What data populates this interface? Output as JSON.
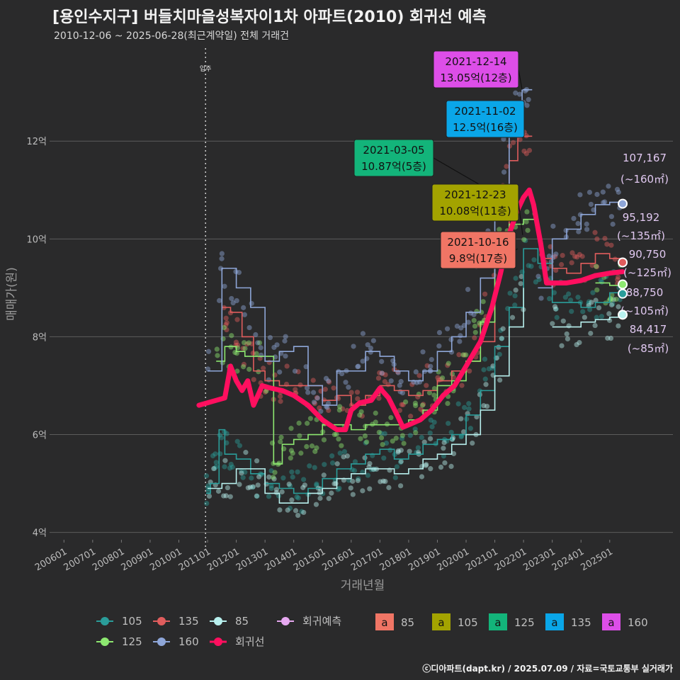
{
  "header": {
    "title": "[용인수지구] 버들치마을성복자이1차 아파트(2010) 회귀선 예측",
    "subtitle": "2010-12-06 ~ 2025-06-28(최근계약일) 전체 거래건",
    "credit": "ⓒ디아파트(dapt.kr) / 2025.07.09 / 자료=국토교통부 실거래가"
  },
  "chart_data": {
    "type": "line",
    "xlabel": "거래년월",
    "ylabel": "매매가(원)",
    "x_unit": "year_decimal",
    "xlim": [
      2005.5,
      2027.2
    ],
    "ylim": [
      3.85,
      13.9
    ],
    "y_ticks": [
      {
        "v": 4,
        "label": "4억"
      },
      {
        "v": 6,
        "label": "6억"
      },
      {
        "v": 8,
        "label": "8억"
      },
      {
        "v": 10,
        "label": "10억"
      },
      {
        "v": 12,
        "label": "12억"
      }
    ],
    "x_ticks": [
      {
        "v": 2006,
        "label": "200601"
      },
      {
        "v": 2007,
        "label": "200701"
      },
      {
        "v": 2008,
        "label": "200801"
      },
      {
        "v": 2009,
        "label": "200901"
      },
      {
        "v": 2010,
        "label": "201001"
      },
      {
        "v": 2011,
        "label": "201101"
      },
      {
        "v": 2012,
        "label": "201201"
      },
      {
        "v": 2013,
        "label": "201301"
      },
      {
        "v": 2014,
        "label": "201401"
      },
      {
        "v": 2015,
        "label": "201501"
      },
      {
        "v": 2016,
        "label": "201601"
      },
      {
        "v": 2017,
        "label": "201701"
      },
      {
        "v": 2018,
        "label": "201801"
      },
      {
        "v": 2019,
        "label": "201901"
      },
      {
        "v": 2020,
        "label": "202001"
      },
      {
        "v": 2021,
        "label": "202101"
      },
      {
        "v": 2022,
        "label": "202201"
      },
      {
        "v": 2023,
        "label": "202301"
      },
      {
        "v": 2024,
        "label": "202401"
      },
      {
        "v": 2025,
        "label": "202501"
      }
    ],
    "move_in": {
      "x": 2010.93,
      "label": "입주"
    },
    "series": [
      {
        "name": "105",
        "color": "#2a9d9a",
        "points": [
          [
            2010.95,
            4.8
          ],
          [
            2011.1,
            5.0
          ],
          [
            2011.4,
            6.1
          ],
          [
            2011.6,
            5.6
          ],
          [
            2012.0,
            5.5
          ],
          [
            2012.5,
            5.2
          ],
          [
            2013.0,
            5.0
          ],
          [
            2013.5,
            4.9
          ],
          [
            2014.0,
            4.8
          ],
          [
            2014.5,
            4.9
          ],
          [
            2015.0,
            5.1
          ],
          [
            2015.5,
            5.3
          ],
          [
            2016.0,
            5.4
          ],
          [
            2016.5,
            5.6
          ],
          [
            2017.0,
            5.7
          ],
          [
            2017.5,
            5.5
          ],
          [
            2018.0,
            5.6
          ],
          [
            2018.5,
            5.8
          ],
          [
            2019.0,
            5.9
          ],
          [
            2019.5,
            6.0
          ],
          [
            2020.0,
            6.4
          ],
          [
            2020.5,
            6.9
          ],
          [
            2021.0,
            7.8
          ],
          [
            2021.5,
            8.6
          ],
          [
            2022.0,
            9.8
          ],
          [
            2022.5,
            9.5
          ],
          [
            2023.0,
            8.7
          ],
          [
            2023.5,
            8.7
          ],
          [
            2024.0,
            8.6
          ],
          [
            2024.5,
            8.7
          ],
          [
            2025.0,
            8.9
          ],
          [
            2025.4,
            8.9
          ]
        ]
      },
      {
        "name": "135",
        "color": "#e05d5d",
        "points": [
          [
            2011.5,
            8.6
          ],
          [
            2011.8,
            8.5
          ],
          [
            2012.2,
            8.0
          ],
          [
            2012.6,
            7.3
          ],
          [
            2013.0,
            7.1
          ],
          [
            2013.5,
            7.0
          ],
          [
            2014.0,
            7.0
          ],
          [
            2014.5,
            7.0
          ],
          [
            2015.0,
            6.7
          ],
          [
            2015.5,
            6.8
          ],
          [
            2016.0,
            6.6
          ],
          [
            2016.5,
            6.8
          ],
          [
            2017.0,
            7.0
          ],
          [
            2017.5,
            6.9
          ],
          [
            2018.0,
            6.8
          ],
          [
            2018.5,
            6.9
          ],
          [
            2019.0,
            7.1
          ],
          [
            2019.5,
            7.3
          ],
          [
            2020.0,
            7.5
          ],
          [
            2020.5,
            7.9
          ],
          [
            2021.0,
            9.8
          ],
          [
            2021.5,
            11.6
          ],
          [
            2021.8,
            12.5
          ],
          [
            2022.0,
            12.1
          ],
          [
            2022.3,
            12.1
          ]
        ]
      },
      {
        "name": "135",
        "color": "#e05d5d",
        "points": [
          [
            2022.6,
            9.6
          ],
          [
            2023.0,
            9.4
          ],
          [
            2023.5,
            9.3
          ],
          [
            2024.0,
            9.5
          ],
          [
            2024.5,
            9.7
          ],
          [
            2025.0,
            9.6
          ],
          [
            2025.4,
            9.5
          ]
        ]
      },
      {
        "name": "85",
        "color": "#b8f0ee",
        "points": [
          [
            2011.0,
            4.9
          ],
          [
            2011.5,
            5.0
          ],
          [
            2012.0,
            5.3
          ],
          [
            2012.5,
            5.3
          ],
          [
            2013.0,
            4.8
          ],
          [
            2013.5,
            4.6
          ],
          [
            2014.0,
            4.6
          ],
          [
            2014.5,
            4.8
          ],
          [
            2015.0,
            4.9
          ],
          [
            2015.5,
            5.1
          ],
          [
            2016.0,
            5.2
          ],
          [
            2016.5,
            5.3
          ],
          [
            2017.0,
            5.3
          ],
          [
            2017.5,
            5.2
          ],
          [
            2018.0,
            5.3
          ],
          [
            2018.5,
            5.5
          ],
          [
            2019.0,
            5.6
          ],
          [
            2019.5,
            5.8
          ],
          [
            2020.0,
            6.0
          ],
          [
            2020.5,
            6.5
          ],
          [
            2021.0,
            7.2
          ],
          [
            2021.5,
            8.2
          ],
          [
            2022.0,
            9.0
          ]
        ]
      },
      {
        "name": "85",
        "color": "#b8f0ee",
        "points": [
          [
            2023.0,
            8.2
          ],
          [
            2023.5,
            8.2
          ],
          [
            2024.0,
            8.3
          ],
          [
            2024.5,
            8.35
          ],
          [
            2025.0,
            8.4
          ],
          [
            2025.4,
            8.45
          ]
        ]
      },
      {
        "name": "125",
        "color": "#8de870",
        "points": [
          [
            2011.3,
            7.5
          ],
          [
            2011.6,
            7.8
          ],
          [
            2012.0,
            7.7
          ],
          [
            2012.3,
            7.6
          ],
          [
            2012.8,
            7.6
          ],
          [
            2013.3,
            5.4
          ],
          [
            2013.6,
            5.8
          ],
          [
            2014.0,
            5.9
          ],
          [
            2014.5,
            6.0
          ],
          [
            2015.0,
            6.2
          ],
          [
            2015.5,
            6.2
          ],
          [
            2016.0,
            6.1
          ],
          [
            2016.5,
            6.2
          ],
          [
            2017.0,
            6.2
          ],
          [
            2017.5,
            6.2
          ],
          [
            2018.0,
            6.3
          ],
          [
            2018.5,
            6.5
          ],
          [
            2019.0,
            7.0
          ],
          [
            2019.5,
            7.1
          ],
          [
            2020.0,
            7.5
          ],
          [
            2020.5,
            8.3
          ],
          [
            2021.0,
            9.8
          ],
          [
            2021.5,
            10.3
          ],
          [
            2022.0,
            10.4
          ],
          [
            2022.4,
            10.5
          ]
        ]
      },
      {
        "name": "125",
        "color": "#8de870",
        "points": [
          [
            2024.5,
            9.1
          ],
          [
            2025.0,
            9.05
          ],
          [
            2025.4,
            9.05
          ]
        ]
      },
      {
        "name": "160",
        "color": "#8ea6d8",
        "points": [
          [
            2011.0,
            7.3
          ],
          [
            2011.5,
            9.4
          ],
          [
            2012.0,
            9.0
          ],
          [
            2012.5,
            8.6
          ],
          [
            2013.0,
            7.5
          ],
          [
            2013.5,
            7.7
          ],
          [
            2014.0,
            7.8
          ],
          [
            2014.5,
            7.0
          ],
          [
            2015.0,
            6.6
          ],
          [
            2015.5,
            7.3
          ],
          [
            2016.0,
            7.3
          ],
          [
            2016.5,
            7.7
          ],
          [
            2017.0,
            7.6
          ],
          [
            2017.5,
            7.3
          ],
          [
            2018.0,
            7.1
          ],
          [
            2018.5,
            7.3
          ],
          [
            2019.0,
            7.7
          ],
          [
            2019.5,
            8.0
          ],
          [
            2020.0,
            8.5
          ],
          [
            2020.5,
            9.2
          ],
          [
            2021.0,
            10.5
          ],
          [
            2021.5,
            12.4
          ],
          [
            2021.95,
            13.05
          ],
          [
            2022.3,
            13.05
          ]
        ]
      },
      {
        "name": "160",
        "color": "#8ea6d8",
        "points": [
          [
            2022.5,
            9.0
          ],
          [
            2023.0,
            10.0
          ],
          [
            2023.5,
            10.2
          ],
          [
            2024.0,
            10.5
          ],
          [
            2024.5,
            10.7
          ],
          [
            2025.0,
            10.75
          ],
          [
            2025.4,
            10.75
          ]
        ]
      }
    ],
    "regression": {
      "name": "회귀선",
      "color": "#ff0f5f",
      "points": [
        [
          2010.7,
          6.6
        ],
        [
          2011.3,
          6.7
        ],
        [
          2011.6,
          6.75
        ],
        [
          2011.8,
          7.4
        ],
        [
          2012.0,
          7.1
        ],
        [
          2012.2,
          6.9
        ],
        [
          2012.4,
          7.1
        ],
        [
          2012.6,
          6.6
        ],
        [
          2012.9,
          7.0
        ],
        [
          2013.2,
          6.95
        ],
        [
          2013.6,
          6.9
        ],
        [
          2014.0,
          6.8
        ],
        [
          2014.5,
          6.6
        ],
        [
          2015.0,
          6.3
        ],
        [
          2015.5,
          6.1
        ],
        [
          2015.8,
          6.1
        ],
        [
          2016.0,
          6.5
        ],
        [
          2016.3,
          6.65
        ],
        [
          2016.7,
          6.7
        ],
        [
          2017.0,
          6.95
        ],
        [
          2017.3,
          6.75
        ],
        [
          2017.6,
          6.4
        ],
        [
          2017.8,
          6.15
        ],
        [
          2018.0,
          6.2
        ],
        [
          2018.4,
          6.3
        ],
        [
          2018.8,
          6.5
        ],
        [
          2019.2,
          6.8
        ],
        [
          2019.6,
          7.0
        ],
        [
          2020.0,
          7.4
        ],
        [
          2020.5,
          7.9
        ],
        [
          2020.9,
          8.6
        ],
        [
          2021.2,
          9.3
        ],
        [
          2021.5,
          10.1
        ],
        [
          2021.8,
          10.6
        ],
        [
          2022.0,
          10.85
        ],
        [
          2022.2,
          11.0
        ],
        [
          2022.35,
          10.7
        ],
        [
          2022.6,
          9.9
        ],
        [
          2022.8,
          9.1
        ],
        [
          2023.0,
          9.1
        ],
        [
          2023.5,
          9.1
        ],
        [
          2024.0,
          9.15
        ],
        [
          2024.5,
          9.25
        ],
        [
          2025.0,
          9.3
        ],
        [
          2025.45,
          9.33
        ]
      ]
    },
    "scatter_colors": {
      "105": "#2a9d9a",
      "135": "#e05d5d",
      "85": "#b8f0ee",
      "125": "#8de870",
      "160": "#8ea6d8"
    },
    "end_points": [
      {
        "series": "160",
        "x": 2025.45,
        "y": 10.72,
        "value": "107,167",
        "area": "(~160㎡)",
        "color": "#8ea6d8"
      },
      {
        "series": "135",
        "x": 2025.45,
        "y": 9.52,
        "value": "95,192",
        "area": "(~135㎡)",
        "color": "#e05d5d"
      },
      {
        "series": "125",
        "x": 2025.45,
        "y": 9.07,
        "value": "90,750",
        "area": "(~125㎡)",
        "color": "#8de870"
      },
      {
        "series": "105",
        "x": 2025.45,
        "y": 8.88,
        "value": "88,750",
        "area": "(~105㎡)",
        "color": "#2a9d9a"
      },
      {
        "series": "85",
        "x": 2025.45,
        "y": 8.45,
        "value": "84,417",
        "area": "(~85㎡)",
        "color": "#b8f0ee"
      }
    ],
    "annotations": [
      {
        "date": "2021-12-14",
        "text": "13.05억(12층)",
        "fill": "#dd4ee8",
        "x": 2021.95,
        "y": 13.05
      },
      {
        "date": "2021-11-02",
        "text": "12.5억(16층)",
        "fill": "#0aa6e8",
        "x": 2021.84,
        "y": 12.5
      },
      {
        "date": "2021-03-05",
        "text": "10.87억(5층)",
        "fill": "#13b47a",
        "x": 2021.18,
        "y": 10.87
      },
      {
        "date": "2021-12-23",
        "text": "10.08억(11층)",
        "fill": "#a3a300",
        "x": 2021.97,
        "y": 10.08
      },
      {
        "date": "2021-10-16",
        "text": "9.8억(17층)",
        "fill": "#f07565",
        "x": 2021.79,
        "y": 9.8
      }
    ],
    "legend": {
      "lines": [
        {
          "label": "105",
          "color": "#2a9d9a"
        },
        {
          "label": "135",
          "color": "#e05d5d"
        },
        {
          "label": "85",
          "color": "#b8f0ee"
        },
        {
          "label": "회귀예측",
          "color": "#e6a8f0"
        },
        {
          "label": "125",
          "color": "#8de870"
        },
        {
          "label": "160",
          "color": "#8ea6d8"
        },
        {
          "label": "회귀선",
          "color": "#ff0f5f"
        }
      ],
      "boxes": [
        {
          "label": "85",
          "color": "#f07565"
        },
        {
          "label": "105",
          "color": "#a3a300"
        },
        {
          "label": "125",
          "color": "#13b47a"
        },
        {
          "label": "135",
          "color": "#0aa6e8"
        },
        {
          "label": "160",
          "color": "#dd4ee8"
        }
      ],
      "box_glyph": "a"
    }
  }
}
